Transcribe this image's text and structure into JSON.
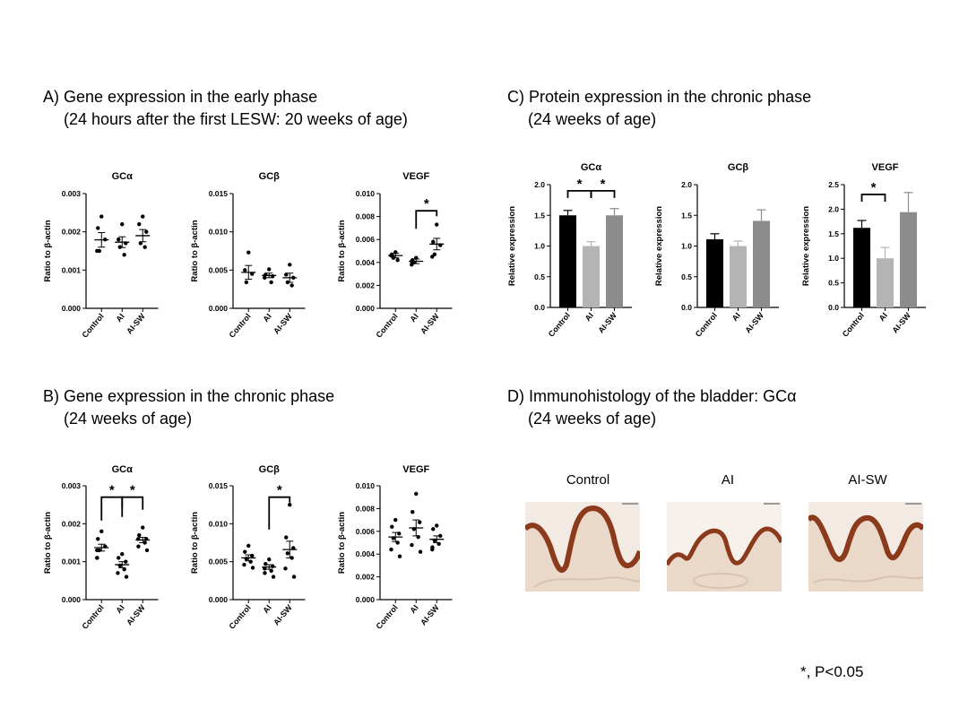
{
  "sections": {
    "a": {
      "line1": "A) Gene expression in the early phase",
      "line2": "(24 hours after the first LESW: 20 weeks of age)"
    },
    "b": {
      "line1": "B) Gene expression in the chronic phase",
      "line2": "(24 weeks of age)"
    },
    "c": {
      "line1": "C) Protein expression in the chronic phase",
      "line2": "(24 weeks of age)"
    },
    "d": {
      "line1": "D) Immunohistology of the bladder: GCα",
      "line2": "(24 weeks of age)"
    }
  },
  "histology": {
    "labels": [
      "Control",
      "AI",
      "AI-SW"
    ],
    "stain_color": "#8b3a1c",
    "tissue_color": "#ead8c8"
  },
  "footnote": "*, P<0.05",
  "colors": {
    "control": "#000000",
    "ai": "#b4b4b4",
    "aisw": "#8c8c8c"
  },
  "chart_data": [
    {
      "panel": "A",
      "type": "scatter",
      "title": "GCα",
      "ylabel": "Ratio to β-actin",
      "categories": [
        "Control",
        "AI",
        "AI-SW"
      ],
      "ylim": [
        0,
        0.003
      ],
      "yticks": [
        "0.000",
        "0.001",
        "0.002",
        "0.003"
      ],
      "points": [
        [
          0.0024,
          0.0021,
          0.0018,
          0.0015,
          0.0015
        ],
        [
          0.0022,
          0.0018,
          0.0017,
          0.0016,
          0.0014
        ],
        [
          0.0024,
          0.0022,
          0.002,
          0.0017,
          0.0016
        ]
      ],
      "mean": [
        0.00179,
        0.00173,
        0.0019
      ],
      "sem": [
        0.00019,
        0.00014,
        0.00016
      ],
      "significance": []
    },
    {
      "panel": "A",
      "type": "scatter",
      "title": "GCβ",
      "ylabel": "Ratio to β-actin",
      "categories": [
        "Control",
        "AI",
        "AI-SW"
      ],
      "ylim": [
        0,
        0.015
      ],
      "yticks": [
        "0.000",
        "0.005",
        "0.010",
        "0.015"
      ],
      "points": [
        [
          0.0073,
          0.005,
          0.0045,
          0.0034
        ],
        [
          0.0051,
          0.0044,
          0.0042,
          0.004,
          0.0034
        ],
        [
          0.0057,
          0.0044,
          0.004,
          0.0034,
          0.003
        ]
      ],
      "mean": [
        0.0047,
        0.0043,
        0.004
      ],
      "sem": [
        0.0009,
        0.0003,
        0.0006
      ],
      "significance": []
    },
    {
      "panel": "A",
      "type": "scatter",
      "title": "VEGF",
      "ylabel": "Ratio to β-actin",
      "categories": [
        "Control",
        "AI",
        "AI-SW"
      ],
      "ylim": [
        0,
        0.01
      ],
      "yticks": [
        "0.000",
        "0.002",
        "0.004",
        "0.006",
        "0.008",
        "0.010"
      ],
      "points": [
        [
          0.0049,
          0.0047,
          0.0046,
          0.0044,
          0.0042
        ],
        [
          0.0044,
          0.0042,
          0.0041,
          0.004,
          0.0038
        ],
        [
          0.0073,
          0.0058,
          0.0055,
          0.0047,
          0.0045
        ]
      ],
      "mean": [
        0.0046,
        0.0041,
        0.0056
      ],
      "sem": [
        0.0002,
        0.0002,
        0.0005
      ],
      "significance": [
        {
          "from": 1,
          "to": 2,
          "level": 0.0085,
          "label": "*"
        }
      ]
    },
    {
      "panel": "B",
      "type": "scatter",
      "title": "GCα",
      "ylabel": "Ratio to β-actin",
      "categories": [
        "Control",
        "AI",
        "AI-SW"
      ],
      "ylim": [
        0,
        0.003
      ],
      "yticks": [
        "0.000",
        "0.001",
        "0.002",
        "0.003"
      ],
      "points": [
        [
          0.0018,
          0.0016,
          0.0014,
          0.0013,
          0.0013,
          0.0011,
          0.0011
        ],
        [
          0.0012,
          0.0011,
          0.001,
          0.0009,
          0.0008,
          0.0007,
          0.0006
        ],
        [
          0.0019,
          0.0017,
          0.0016,
          0.0016,
          0.0015,
          0.0014,
          0.0013
        ]
      ],
      "mean": [
        0.00137,
        0.00092,
        0.00157
      ],
      "sem": [
        9e-05,
        8e-05,
        7e-05
      ],
      "significance": [
        {
          "from": 0,
          "to": 1,
          "level": 0.0027,
          "label": "*"
        },
        {
          "from": 1,
          "to": 2,
          "level": 0.0027,
          "label": "*"
        }
      ]
    },
    {
      "panel": "B",
      "type": "scatter",
      "title": "GCβ",
      "ylabel": "Ratio to β-actin",
      "categories": [
        "Control",
        "AI",
        "AI-SW"
      ],
      "ylim": [
        0,
        0.015
      ],
      "yticks": [
        "0.000",
        "0.005",
        "0.010",
        "0.015"
      ],
      "points": [
        [
          0.0071,
          0.0063,
          0.0058,
          0.0054,
          0.005,
          0.0046,
          0.0042
        ],
        [
          0.0053,
          0.0047,
          0.0044,
          0.0041,
          0.0038,
          0.0035,
          0.003
        ],
        [
          0.0125,
          0.0082,
          0.0068,
          0.0061,
          0.0055,
          0.0041,
          0.003
        ]
      ],
      "mean": [
        0.0055,
        0.0043,
        0.0066
      ],
      "sem": [
        0.0004,
        0.0003,
        0.0011
      ],
      "significance": [
        {
          "from": 1,
          "to": 2,
          "level": 0.0135,
          "label": "*"
        }
      ]
    },
    {
      "panel": "B",
      "type": "scatter",
      "title": "VEGF",
      "ylabel": "Ratio to β-actin",
      "categories": [
        "Control",
        "AI",
        "AI-SW"
      ],
      "ylim": [
        0,
        0.01
      ],
      "yticks": [
        "0.000",
        "0.002",
        "0.004",
        "0.006",
        "0.008",
        "0.010"
      ],
      "points": [
        [
          0.007,
          0.0064,
          0.0058,
          0.0054,
          0.005,
          0.0044,
          0.0038
        ],
        [
          0.0093,
          0.0077,
          0.0068,
          0.0062,
          0.0055,
          0.0048,
          0.0042
        ],
        [
          0.0065,
          0.0062,
          0.0056,
          0.0052,
          0.0049,
          0.0046,
          0.0044
        ]
      ],
      "mean": [
        0.0055,
        0.0063,
        0.0053
      ],
      "sem": [
        0.0004,
        0.0007,
        0.0003
      ],
      "significance": []
    },
    {
      "panel": "C",
      "type": "bar",
      "title": "GCα",
      "ylabel": "Relative expression",
      "categories": [
        "Control",
        "AI",
        "AI-SW"
      ],
      "ylim": [
        0,
        2.0
      ],
      "yticks": [
        "0.0",
        "0.5",
        "1.0",
        "1.5",
        "2.0"
      ],
      "values": [
        1.5,
        1.0,
        1.5
      ],
      "errors": [
        0.08,
        0.07,
        0.11
      ],
      "significance": [
        {
          "from": 0,
          "to": 1,
          "level": 1.9,
          "label": "*"
        },
        {
          "from": 1,
          "to": 2,
          "level": 1.9,
          "label": "*"
        }
      ]
    },
    {
      "panel": "C",
      "type": "bar",
      "title": "GCβ",
      "ylabel": "Relative expression",
      "categories": [
        "Control",
        "AI",
        "AI-SW"
      ],
      "ylim": [
        0,
        2.0
      ],
      "yticks": [
        "0.0",
        "0.5",
        "1.0",
        "1.5",
        "2.0"
      ],
      "values": [
        1.11,
        1.0,
        1.41
      ],
      "errors": [
        0.09,
        0.08,
        0.18
      ],
      "significance": []
    },
    {
      "panel": "C",
      "type": "bar",
      "title": "VEGF",
      "ylabel": "Relative expression",
      "categories": [
        "Control",
        "AI",
        "AI-SW"
      ],
      "ylim": [
        0,
        2.5
      ],
      "yticks": [
        "0.0",
        "0.5",
        "1.0",
        "1.5",
        "2.0",
        "2.5"
      ],
      "values": [
        1.62,
        1.0,
        1.94
      ],
      "errors": [
        0.15,
        0.22,
        0.4
      ],
      "significance": [
        {
          "from": 0,
          "to": 1,
          "level": 2.3,
          "label": "*"
        }
      ]
    }
  ]
}
